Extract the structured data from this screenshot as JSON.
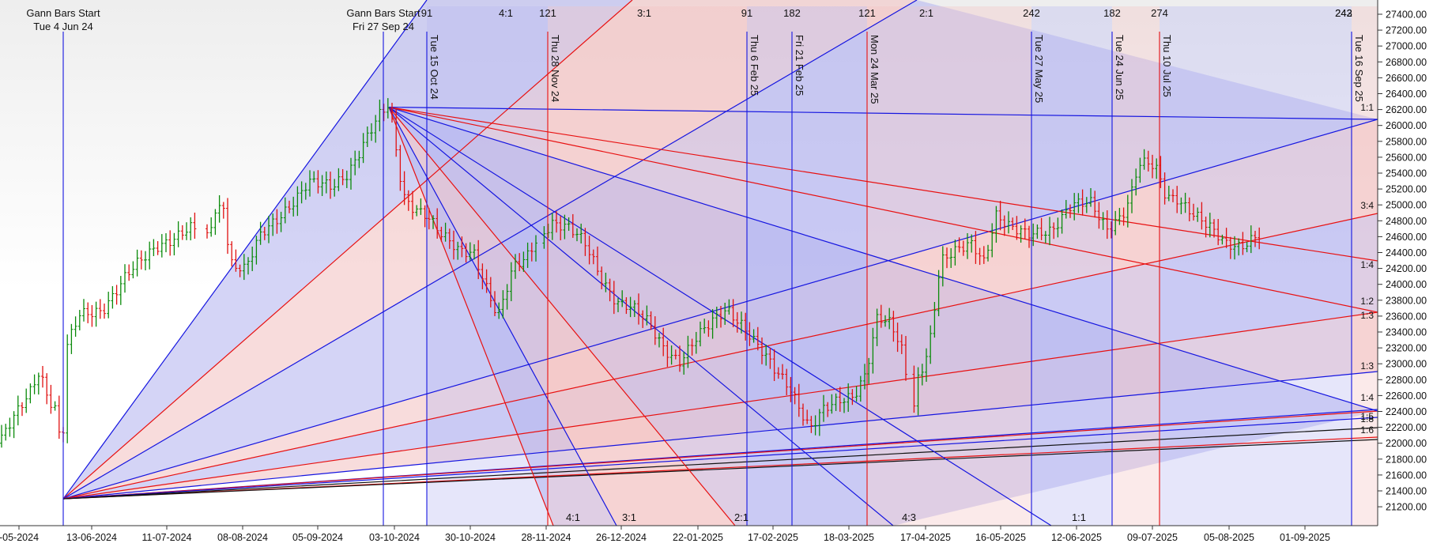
{
  "chart_data": {
    "type": "ohlc",
    "title": "",
    "xlabel": "",
    "ylabel": "",
    "ylim": [
      21000,
      27500
    ],
    "x_ticks": [
      "-05-2024",
      "13-06-2024",
      "11-07-2024",
      "08-08-2024",
      "05-09-2024",
      "03-10-2024",
      "30-10-2024",
      "28-11-2024",
      "26-12-2024",
      "22-01-2025",
      "17-02-2025",
      "18-03-2025",
      "17-04-2025",
      "16-05-2025",
      "12-06-2025",
      "09-07-2025",
      "05-08-2025",
      "01-09-2025"
    ],
    "y_ticks": [
      21200,
      21400,
      21600,
      21800,
      22000,
      22200,
      22400,
      22600,
      22800,
      23000,
      23200,
      23400,
      23600,
      23800,
      24000,
      24200,
      24400,
      24600,
      24800,
      25000,
      25200,
      25400,
      25600,
      25800,
      26000,
      26200,
      26400,
      26600,
      26800,
      27000,
      27200,
      27400
    ],
    "y_tick_labels": [
      "21200.00",
      "21400.00",
      "21600.00",
      "21800.00",
      "22000.00",
      "22200.00",
      "22400.00",
      "22600.00",
      "22800.00",
      "23000.00",
      "23200.00",
      "23400.00",
      "23600.00",
      "23800.00",
      "24000.00",
      "24200.00",
      "24400.00",
      "24600.00",
      "24800.00",
      "25000.00",
      "25200.00",
      "25400.00",
      "25600.00",
      "25800.00",
      "26000.00",
      "26200.00",
      "26400.00",
      "26600.00",
      "26800.00",
      "27000.00",
      "27200.00",
      "27400.00"
    ],
    "anchor_labels": [
      {
        "title": "Gann Bars Start",
        "date": "Tue 4 Jun 24"
      },
      {
        "title": "Gann Bars Start",
        "date": "Fri 27 Sep 24"
      }
    ],
    "time_lines": [
      {
        "label": "Tue 15 Oct 24",
        "count": "91",
        "color": "blue"
      },
      {
        "label": "Thu 28 Nov 24",
        "count": "121",
        "color": "red"
      },
      {
        "label": "Thu 6 Feb 25",
        "count": "91",
        "color": "blue"
      },
      {
        "label": "Fri 21 Feb 25",
        "count": "182",
        "color": "blue"
      },
      {
        "label": "Mon 24 Mar 25",
        "count": "121",
        "color": "red"
      },
      {
        "label": "Tue 27 May 25",
        "count": "242",
        "color": "blue"
      },
      {
        "label": "Tue 24 Jun 25",
        "count": "182",
        "color": "blue"
      },
      {
        "label": "Thu 10 Jul 25",
        "count": "274",
        "color": "red"
      },
      {
        "label": "Tue 16 Sep 25",
        "count": "242",
        "color": "blue"
      }
    ],
    "top_ratio_labels": [
      "4:1",
      "3:1",
      "2:1"
    ],
    "right_top_labels": [
      "242",
      "243"
    ],
    "right_ratio_labels": [
      "1:1",
      "3:4",
      "1:4",
      "1:2",
      "1:3",
      "1:3",
      "1:4",
      "1:5",
      "1:8",
      "1:6"
    ],
    "bottom_ratio_labels": [
      "4:1",
      "3:1",
      "2:1",
      "4:3",
      "1:1"
    ],
    "fan_origins": [
      {
        "date": "Tue 4 Jun 24",
        "price": 21300
      },
      {
        "date": "Fri 27 Sep 24",
        "price": 26230
      }
    ],
    "price_series_summary": {
      "start": 22000,
      "high": 26230,
      "low": 21750,
      "end": 24630
    },
    "colors": {
      "up": "#0a8a0a",
      "down": "#e01010",
      "blue_line": "#1515e0",
      "red_line": "#e81010",
      "blue_fill": "#b8b8f0",
      "red_fill": "#f4c4c4"
    }
  }
}
